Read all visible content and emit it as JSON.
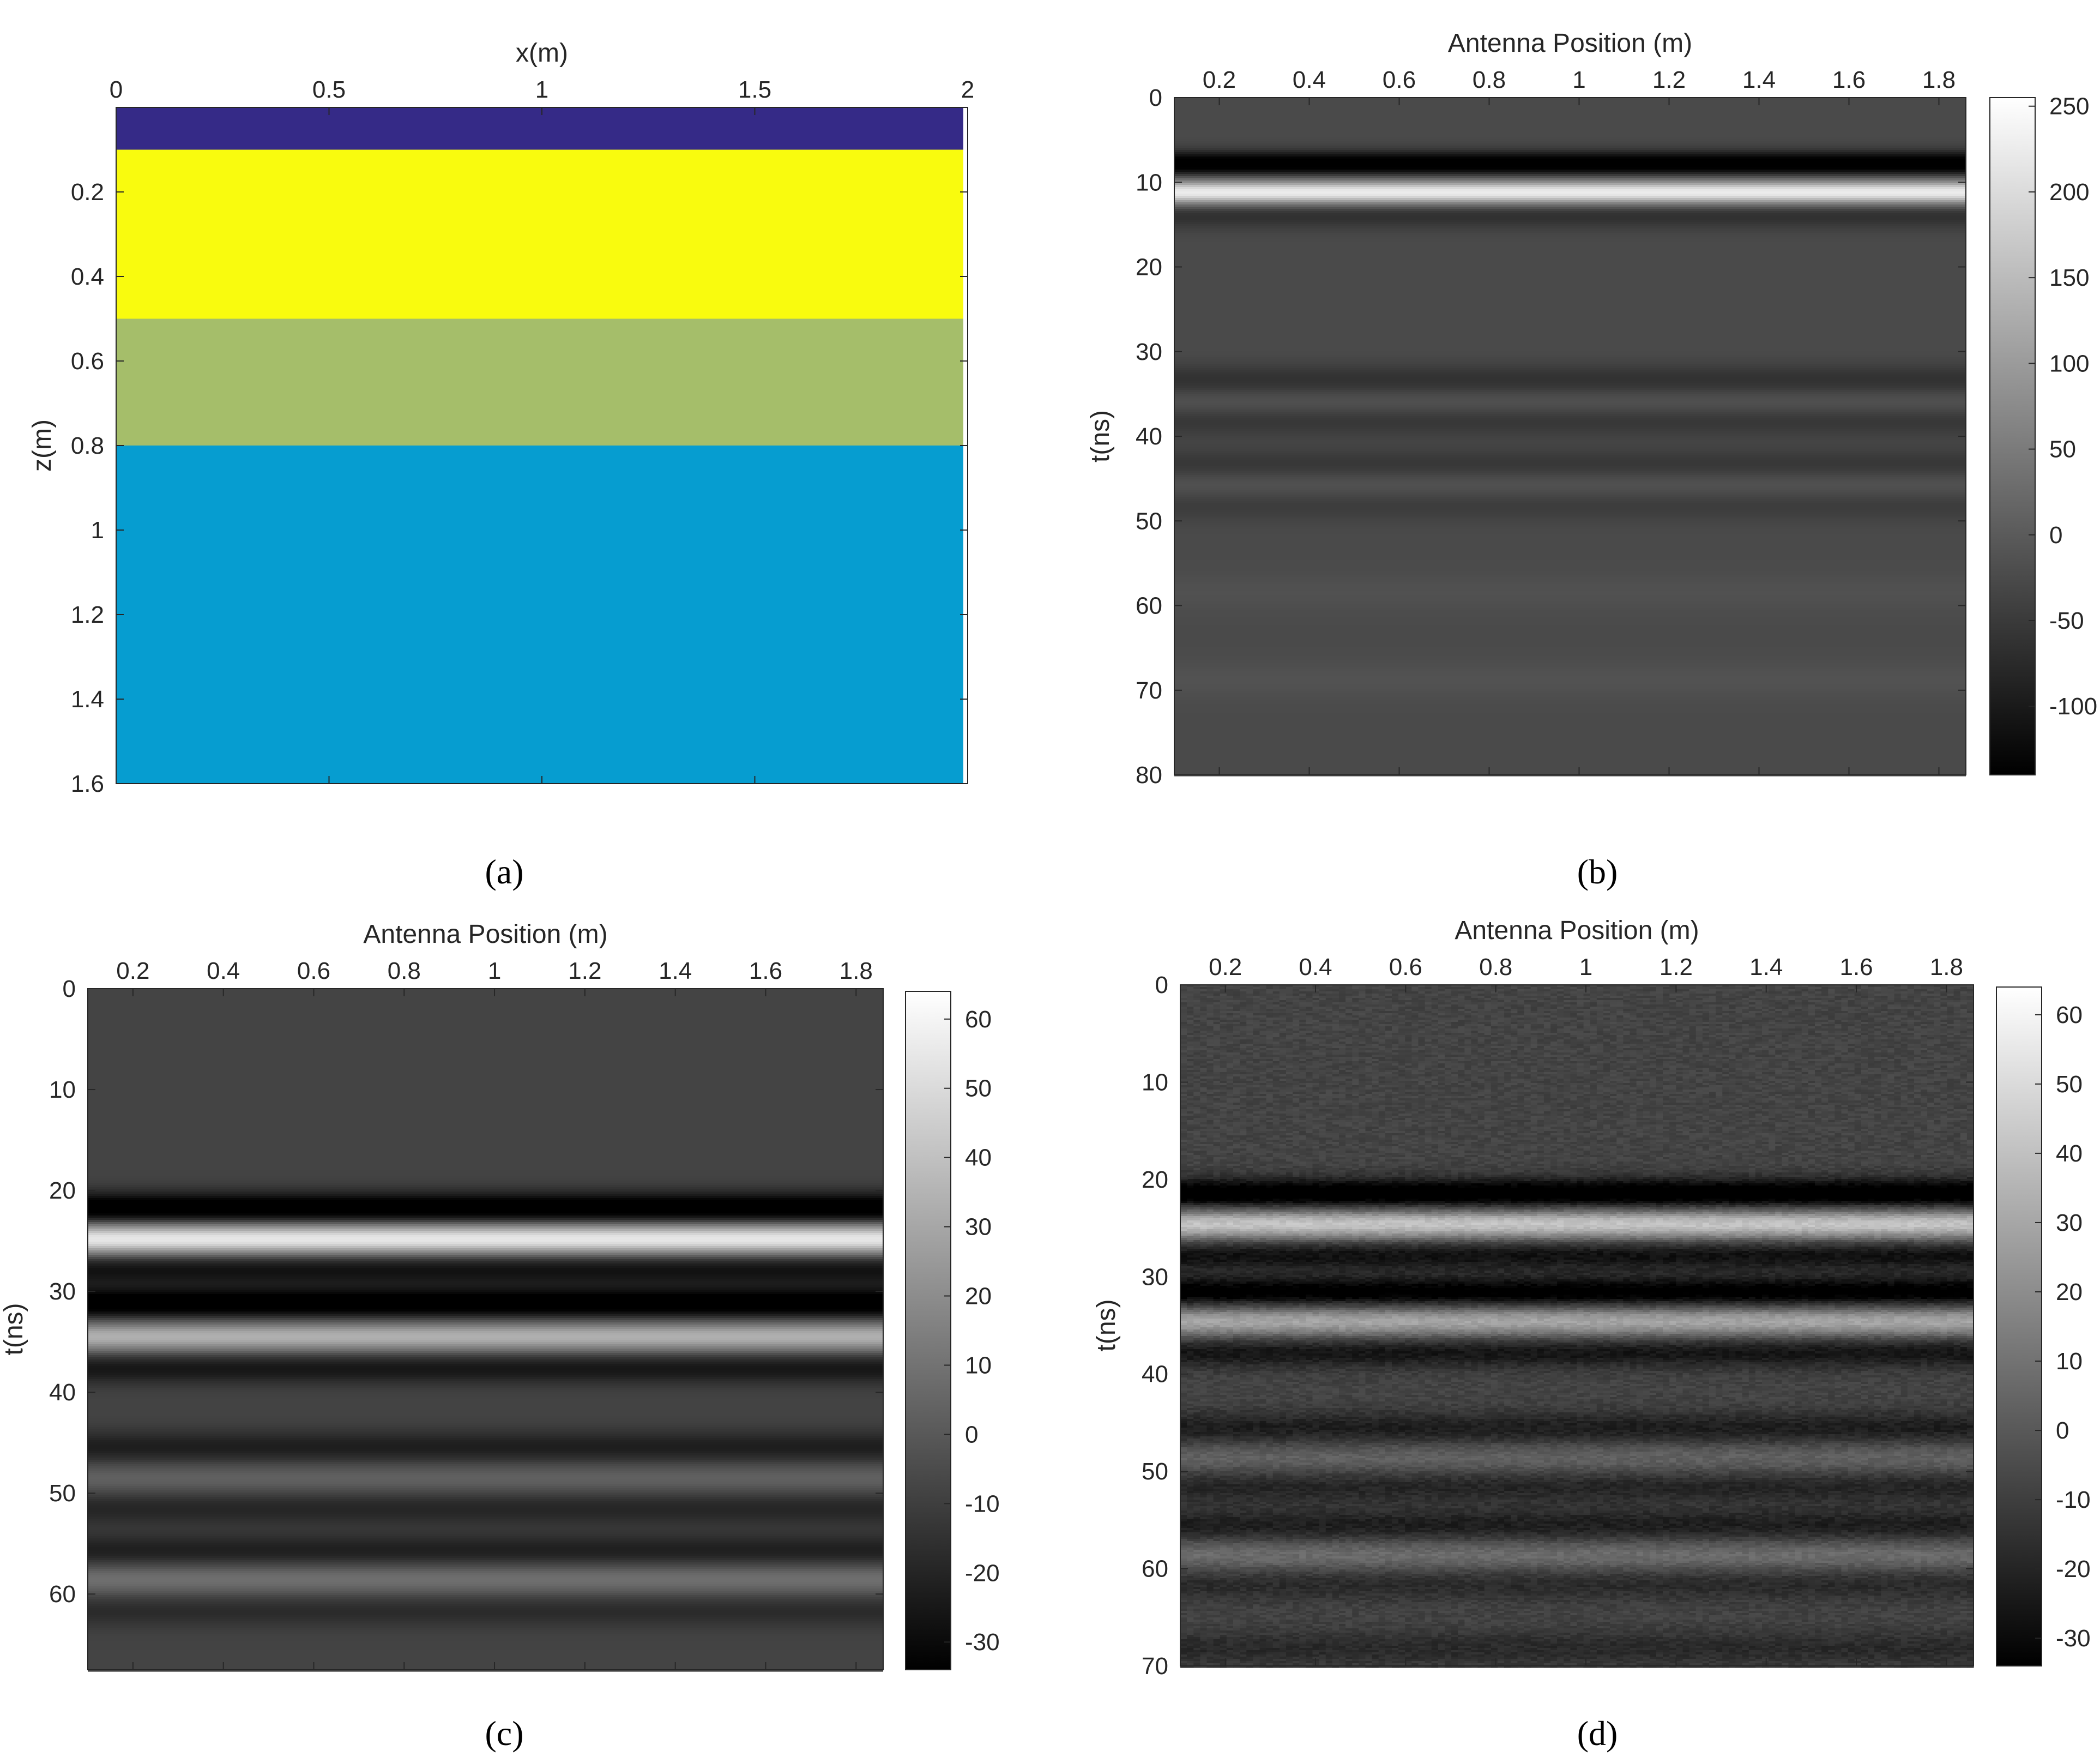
{
  "chart_data": [
    {
      "type": "heatmap",
      "panel": "(a)",
      "caption_letter": "a",
      "xlabel": "x(m)",
      "ylabel": "z(m)",
      "xlim": [
        0,
        2
      ],
      "ylim": [
        0,
        1.6
      ],
      "xticks": [
        0,
        0.5,
        1,
        1.5,
        2
      ],
      "xtick_labels": [
        "0",
        "0.5",
        "1",
        "1.5",
        "2"
      ],
      "yticks": [
        0.2,
        0.4,
        0.6,
        0.8,
        1,
        1.2,
        1.4,
        1.6
      ],
      "ytick_labels": [
        "0.2",
        "0.4",
        "0.6",
        "0.8",
        "1",
        "1.2",
        "1.4",
        "1.6"
      ],
      "x_axis_location": "top",
      "y_direction": "down",
      "layers": [
        {
          "z_top": 0.0,
          "z_bottom": 0.1,
          "color": "#352a87"
        },
        {
          "z_top": 0.1,
          "z_bottom": 0.5,
          "color": "#f9fb0e"
        },
        {
          "z_top": 0.5,
          "z_bottom": 0.8,
          "color": "#a5be6a"
        },
        {
          "z_top": 0.8,
          "z_bottom": 1.6,
          "color": "#069dd0"
        }
      ]
    },
    {
      "type": "heatmap",
      "panel": "(b)",
      "caption_letter": "b",
      "title": "",
      "xlabel": "Antenna Position (m)",
      "ylabel": "t(ns)",
      "xlim": [
        0.1,
        1.86
      ],
      "ylim": [
        0,
        80
      ],
      "xticks": [
        0.2,
        0.4,
        0.6,
        0.8,
        1,
        1.2,
        1.4,
        1.6,
        1.8
      ],
      "xtick_labels": [
        "0.2",
        "0.4",
        "0.6",
        "0.8",
        "1",
        "1.2",
        "1.4",
        "1.6",
        "1.8"
      ],
      "yticks": [
        0,
        10,
        20,
        30,
        40,
        50,
        60,
        70,
        80
      ],
      "ytick_labels": [
        "0",
        "10",
        "20",
        "30",
        "40",
        "50",
        "60",
        "70",
        "80"
      ],
      "x_axis_location": "top",
      "y_direction": "down",
      "colormap": "gray",
      "clim": [
        -140,
        255
      ],
      "colorbar_ticks": [
        250,
        200,
        150,
        100,
        50,
        0,
        -50,
        -100
      ],
      "colorbar_tick_labels": [
        "250",
        "200",
        "150",
        "100",
        "50",
        "0",
        "-50",
        "-100"
      ],
      "background_value": -25,
      "noise": false,
      "reflections": [
        {
          "t": 7.8,
          "amplitude": -140,
          "width": 1.0
        },
        {
          "t": 11.2,
          "amplitude": 255,
          "width": 1.0
        },
        {
          "t": 13.8,
          "amplitude": -45,
          "width": 1.2
        },
        {
          "t": 33.6,
          "amplitude": -45,
          "width": 1.4
        },
        {
          "t": 35.8,
          "amplitude": 30,
          "width": 1.4
        },
        {
          "t": 38.0,
          "amplitude": -35,
          "width": 1.4
        },
        {
          "t": 43.5,
          "amplitude": -35,
          "width": 1.4
        },
        {
          "t": 45.6,
          "amplitude": 25,
          "width": 1.4
        },
        {
          "t": 48.0,
          "amplitude": -25,
          "width": 1.4
        },
        {
          "t": 58.5,
          "amplitude": 10,
          "width": 1.5
        },
        {
          "t": 68.8,
          "amplitude": 12,
          "width": 1.5
        }
      ]
    },
    {
      "type": "heatmap",
      "panel": "(c)",
      "caption_letter": "c",
      "xlabel": "Antenna Position (m)",
      "ylabel": "t(ns)",
      "xlim": [
        0.1,
        1.86
      ],
      "ylim": [
        0,
        67.5
      ],
      "xticks": [
        0.2,
        0.4,
        0.6,
        0.8,
        1,
        1.2,
        1.4,
        1.6,
        1.8
      ],
      "xtick_labels": [
        "0.2",
        "0.4",
        "0.6",
        "0.8",
        "1",
        "1.2",
        "1.4",
        "1.6",
        "1.8"
      ],
      "yticks": [
        0,
        10,
        20,
        30,
        40,
        50,
        60
      ],
      "ytick_labels": [
        "0",
        "10",
        "20",
        "30",
        "40",
        "50",
        "60"
      ],
      "x_axis_location": "top",
      "y_direction": "down",
      "colormap": "gray",
      "clim": [
        -34,
        64
      ],
      "colorbar_ticks": [
        60,
        50,
        40,
        30,
        20,
        10,
        0,
        -10,
        -20,
        -30
      ],
      "colorbar_tick_labels": [
        "60",
        "50",
        "40",
        "30",
        "20",
        "10",
        "0",
        "-10",
        "-20",
        "-30"
      ],
      "background_value": -8,
      "noise": false,
      "reflections": [
        {
          "t": 21.8,
          "amplitude": -34,
          "width": 1.1
        },
        {
          "t": 24.8,
          "amplitude": 64,
          "width": 1.1
        },
        {
          "t": 27.8,
          "amplitude": -20,
          "width": 1.1
        },
        {
          "t": 31.2,
          "amplitude": -33,
          "width": 1.1
        },
        {
          "t": 34.5,
          "amplitude": 42,
          "width": 1.1
        },
        {
          "t": 37.6,
          "amplitude": -18,
          "width": 1.1
        },
        {
          "t": 45.5,
          "amplitude": -15,
          "width": 1.2
        },
        {
          "t": 48.5,
          "amplitude": 12,
          "width": 1.2
        },
        {
          "t": 51.5,
          "amplitude": -12,
          "width": 1.2
        },
        {
          "t": 55.8,
          "amplitude": -15,
          "width": 1.2
        },
        {
          "t": 58.5,
          "amplitude": 18,
          "width": 1.2
        },
        {
          "t": 61.6,
          "amplitude": -10,
          "width": 1.2
        }
      ]
    },
    {
      "type": "heatmap",
      "panel": "(d)",
      "caption_letter": "d",
      "xlabel": "Antenna Position (m)",
      "ylabel": "t(ns)",
      "xlim": [
        0.1,
        1.86
      ],
      "ylim": [
        0,
        70
      ],
      "xticks": [
        0.2,
        0.4,
        0.6,
        0.8,
        1,
        1.2,
        1.4,
        1.6,
        1.8
      ],
      "xtick_labels": [
        "0.2",
        "0.4",
        "0.6",
        "0.8",
        "1",
        "1.2",
        "1.4",
        "1.6",
        "1.8"
      ],
      "yticks": [
        0,
        10,
        20,
        30,
        40,
        50,
        60,
        70
      ],
      "ytick_labels": [
        "0",
        "10",
        "20",
        "30",
        "40",
        "50",
        "60",
        "70"
      ],
      "x_axis_location": "top",
      "y_direction": "down",
      "colormap": "gray",
      "clim": [
        -34,
        64
      ],
      "colorbar_ticks": [
        60,
        50,
        40,
        30,
        20,
        10,
        0,
        -10,
        -20,
        -30
      ],
      "colorbar_tick_labels": [
        "60",
        "50",
        "40",
        "30",
        "20",
        "10",
        "0",
        "-10",
        "-20",
        "-30"
      ],
      "background_value": -8,
      "noise": true,
      "reflections": [
        {
          "t": 21.5,
          "amplitude": -34,
          "width": 1.1
        },
        {
          "t": 24.6,
          "amplitude": 50,
          "width": 1.1
        },
        {
          "t": 27.8,
          "amplitude": -20,
          "width": 1.1
        },
        {
          "t": 31.6,
          "amplitude": -30,
          "width": 1.1
        },
        {
          "t": 34.6,
          "amplitude": 38,
          "width": 1.1
        },
        {
          "t": 37.8,
          "amplitude": -18,
          "width": 1.1
        },
        {
          "t": 45.6,
          "amplitude": -15,
          "width": 1.2
        },
        {
          "t": 48.6,
          "amplitude": 12,
          "width": 1.2
        },
        {
          "t": 51.6,
          "amplitude": -12,
          "width": 1.2
        },
        {
          "t": 55.6,
          "amplitude": -15,
          "width": 1.2
        },
        {
          "t": 58.6,
          "amplitude": 16,
          "width": 1.2
        },
        {
          "t": 61.6,
          "amplitude": -10,
          "width": 1.2
        },
        {
          "t": 68.2,
          "amplitude": -10,
          "width": 1.3
        }
      ]
    }
  ]
}
